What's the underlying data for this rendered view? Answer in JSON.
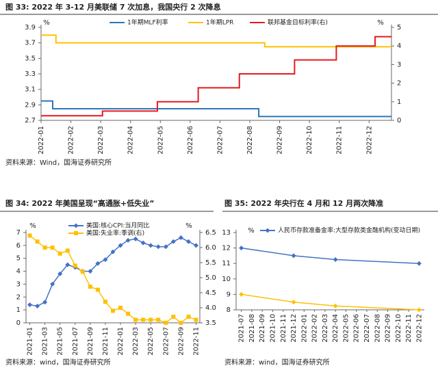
{
  "chart_data": [
    {
      "type": "line",
      "title": "图 33: 2022 年 3-12 月美联储 7 次加息，我国央行 2 次降息",
      "source": "资料来源：Wind，国海证券研究所",
      "ylabel": "%",
      "y2label": "%",
      "step": true,
      "xlim": [
        1,
        12.75
      ],
      "xticks": [
        {
          "value": 1,
          "label": "2022-01"
        },
        {
          "value": 2,
          "label": "2022-02"
        },
        {
          "value": 3,
          "label": "2022-03"
        },
        {
          "value": 4,
          "label": "2022-04"
        },
        {
          "value": 5,
          "label": "2022-05"
        },
        {
          "value": 6,
          "label": "2022-06"
        },
        {
          "value": 7,
          "label": "2022-07"
        },
        {
          "value": 8,
          "label": "2022-08"
        },
        {
          "value": 9,
          "label": "2022-09"
        },
        {
          "value": 10,
          "label": "2022-10"
        },
        {
          "value": 11,
          "label": "2022-11"
        },
        {
          "value": 12,
          "label": "2022-12"
        }
      ],
      "ylim": [
        2.7,
        3.9
      ],
      "yticks": [
        2.7,
        2.9,
        3.1,
        3.3,
        3.5,
        3.7,
        3.9
      ],
      "y2lim": [
        0,
        5
      ],
      "y2ticks": [
        0,
        1,
        2,
        3,
        4,
        5
      ],
      "series": [
        {
          "name": "1年期MLF利率",
          "color": "#2e75b6",
          "x": [
            1,
            1.39,
            8.3,
            12.75
          ],
          "values": [
            2.95,
            2.85,
            2.75,
            2.75
          ]
        },
        {
          "name": "1年期LPR",
          "color": "#ffc000",
          "x": [
            1,
            1.5,
            8.5,
            12.75
          ],
          "values": [
            3.8,
            3.7,
            3.65,
            3.65
          ]
        },
        {
          "name": "联邦基金目标利率(右)",
          "color": "#e41a1c",
          "axis": "y2",
          "x": [
            1,
            3.06,
            4.9,
            6.27,
            7.65,
            9.5,
            10.9,
            12.2,
            12.75
          ],
          "values": [
            0.25,
            0.5,
            1.0,
            1.75,
            2.5,
            3.25,
            4.0,
            4.5,
            4.5
          ]
        }
      ]
    },
    {
      "type": "line",
      "title": "图 34: 2022 年美国呈现“高通胀+低失业”",
      "source": "资料来源：wind，国海证券研究所",
      "ylabel": "%",
      "y2label": "%",
      "categories": [
        "2021-01",
        null,
        "2021-03",
        null,
        "2021-05",
        null,
        "2021-07",
        null,
        "2021-09",
        null,
        "2021-11",
        null,
        "2022-01",
        null,
        "2022-03",
        null,
        "2022-05",
        null,
        "2022-07",
        null,
        "2022-09",
        null,
        "2022-11"
      ],
      "ylim": [
        0,
        7
      ],
      "yticks": [
        0,
        1,
        2,
        3,
        4,
        5,
        6,
        7
      ],
      "y2lim": [
        3.5,
        6.5
      ],
      "y2ticks": [
        3.5,
        {
          "value": 4,
          "label": "4.0"
        },
        4.5,
        {
          "value": 5,
          "label": "5.0"
        },
        5.5,
        {
          "value": 6,
          "label": "6.0"
        },
        6.5
      ],
      "series": [
        {
          "name": "美国:核心CPI:当月同比",
          "color": "#4472c4",
          "marker": "diamond",
          "values": [
            1.4,
            1.3,
            1.6,
            3.0,
            3.8,
            4.5,
            4.3,
            4.0,
            4.0,
            4.6,
            4.9,
            5.5,
            6.0,
            6.4,
            6.5,
            6.2,
            6.0,
            5.9,
            5.9,
            6.3,
            6.6,
            6.3,
            6.0
          ]
        },
        {
          "name": "美国:失业率:季调(右)",
          "color": "#ffc000",
          "marker": "square",
          "axis": "y2",
          "values": [
            6.4,
            6.2,
            6.0,
            6.0,
            5.8,
            5.9,
            5.4,
            5.2,
            4.7,
            4.6,
            4.2,
            3.9,
            4.0,
            3.8,
            3.6,
            3.6,
            3.6,
            3.6,
            3.5,
            3.7,
            3.5,
            3.7,
            3.6
          ]
        }
      ]
    },
    {
      "type": "line",
      "title": "图 35: 2022 年央行在 4 月和 12 月两次降准",
      "source": "资料来源：wind，国海证券研究所",
      "ylabel": "%",
      "categories": [
        "2021-07",
        "2021-08",
        "2021-09",
        "2021-10",
        "2021-11",
        "2021-12",
        "2022-01",
        "2022-02",
        "2022-03",
        "2022-04",
        "2022-05",
        "2022-06",
        "2022-07",
        "2022-08",
        "2022-09",
        "2022-10",
        "2022-11",
        "2022-12"
      ],
      "ylim": [
        8,
        13
      ],
      "yticks": [
        8,
        9,
        10,
        11,
        12,
        13
      ],
      "series": [
        {
          "name": "人民币存款准备金率:大型存款类金融机构(变动日期)",
          "color": "#4472c4",
          "marker": "diamond",
          "x": [
            "2021-07",
            "2021-12",
            "2022-04",
            "2022-12"
          ],
          "values": [
            12.0,
            11.5,
            11.25,
            11.0
          ]
        },
        {
          "color": "#ffc000",
          "marker": "diamond",
          "x": [
            "2021-07",
            "2021-12",
            "2022-04",
            "2022-12"
          ],
          "values": [
            9.0,
            8.5,
            8.25,
            8.0
          ]
        }
      ]
    }
  ]
}
